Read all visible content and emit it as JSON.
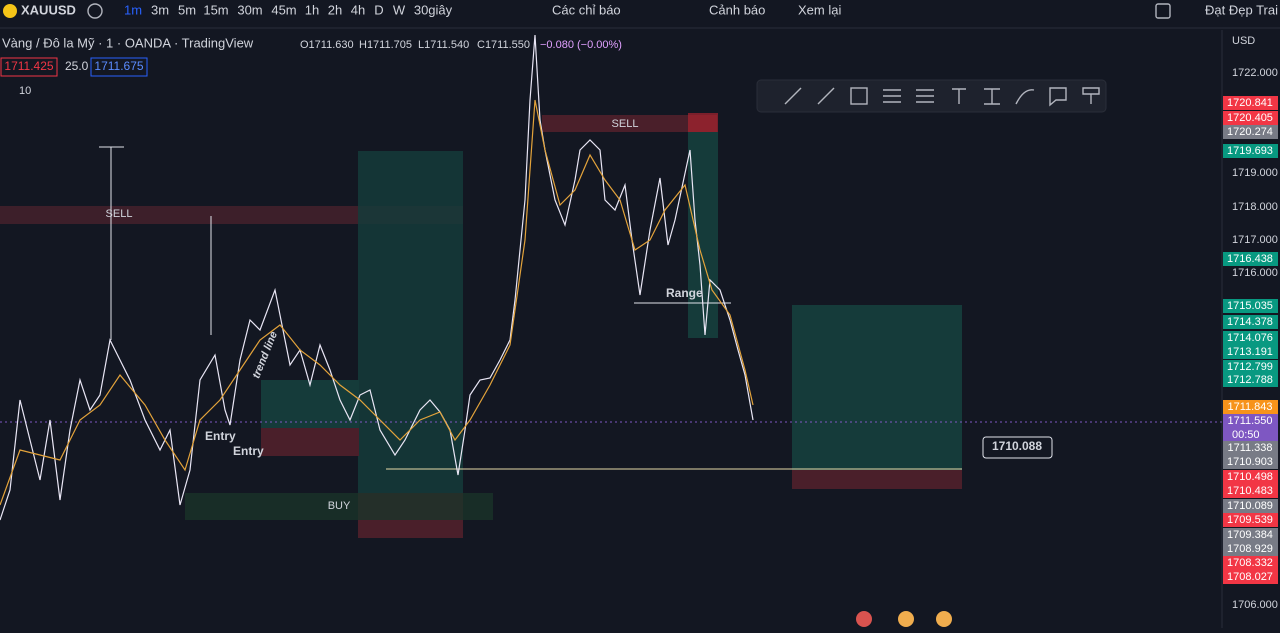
{
  "toolbar": {
    "symbol": "XAUUSD",
    "intervals": [
      "1m",
      "3m",
      "5m",
      "15m",
      "30m",
      "45m",
      "1h",
      "2h",
      "4h",
      "D",
      "W",
      "30giây"
    ],
    "indicators": "Các chỉ báo",
    "alert": "Cảnh báo",
    "replay": "Xem lại",
    "layout": "Đạt Đẹp Trai V"
  },
  "legend": {
    "title": "Vàng / Đô la Mỹ · 1 · OANDA · TradingView",
    "ohlc": [
      "O1711.630",
      "H1711.705",
      "L1711.540",
      "C1711.550",
      "−0.080 (−0.00%)"
    ],
    "bid": "1711.425",
    "spread": "25.0",
    "ask": "1711.675",
    "volume": "10"
  },
  "currency": "USD",
  "price_axis": {
    "ticks": [
      "1722.000",
      "1719.000",
      "1718.000",
      "1717.000",
      "1716.000",
      "1706.000"
    ]
  },
  "price_badges": [
    {
      "label": "1720.841",
      "color": "#f23645"
    },
    {
      "label": "1720.405",
      "color": "#f23645"
    },
    {
      "label": "1720.274",
      "color": "#787b86"
    },
    {
      "label": "1719.693",
      "color": "#089981"
    },
    {
      "label": "1716.438",
      "color": "#089981"
    },
    {
      "label": "1715.035",
      "color": "#089981"
    },
    {
      "label": "1714.378",
      "color": "#089981"
    },
    {
      "label": "1714.076",
      "color": "#089981"
    },
    {
      "label": "1713.191",
      "color": "#089981"
    },
    {
      "label": "1712.799",
      "color": "#089981"
    },
    {
      "label": "1712.788",
      "color": "#089981"
    },
    {
      "label": "1711.843",
      "color": "#f7931a"
    },
    {
      "label": "1711.550",
      "color": "#7e57c2"
    },
    {
      "label": "1711.338",
      "color": "#787b86"
    },
    {
      "label": "1710.903",
      "color": "#787b86"
    },
    {
      "label": "1710.498",
      "color": "#f23645"
    },
    {
      "label": "1710.483",
      "color": "#f23645"
    },
    {
      "label": "1710.089",
      "color": "#787b86"
    },
    {
      "label": "1709.539",
      "color": "#f23645"
    },
    {
      "label": "1709.384",
      "color": "#787b86"
    },
    {
      "label": "1708.929",
      "color": "#787b86"
    },
    {
      "label": "1708.332",
      "color": "#f23645"
    },
    {
      "label": "1708.027",
      "color": "#f23645"
    }
  ],
  "countdown": "00:50",
  "drawings": {
    "sell_left": "SELL",
    "sell_right": "SELL",
    "buy": "BUY",
    "range": "Range",
    "entry_1": "Entry",
    "entry_2": "Entry",
    "trend_line": "trend line",
    "price_note": "1710.088"
  }
}
